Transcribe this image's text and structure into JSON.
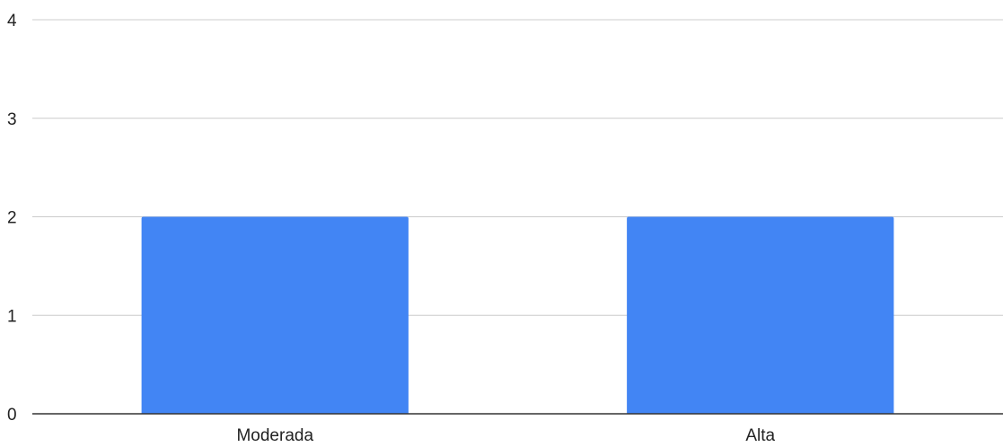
{
  "chart_data": {
    "type": "bar",
    "categories": [
      "Moderada",
      "Alta"
    ],
    "values": [
      2,
      2
    ],
    "ylim": [
      0,
      4
    ],
    "yticks": [
      "0",
      "1",
      "2",
      "3",
      "4"
    ],
    "grid": true,
    "legend": "none",
    "colors": {
      "bar": "#4285f4",
      "grid": "#cccccc",
      "axis": "#333333"
    }
  }
}
